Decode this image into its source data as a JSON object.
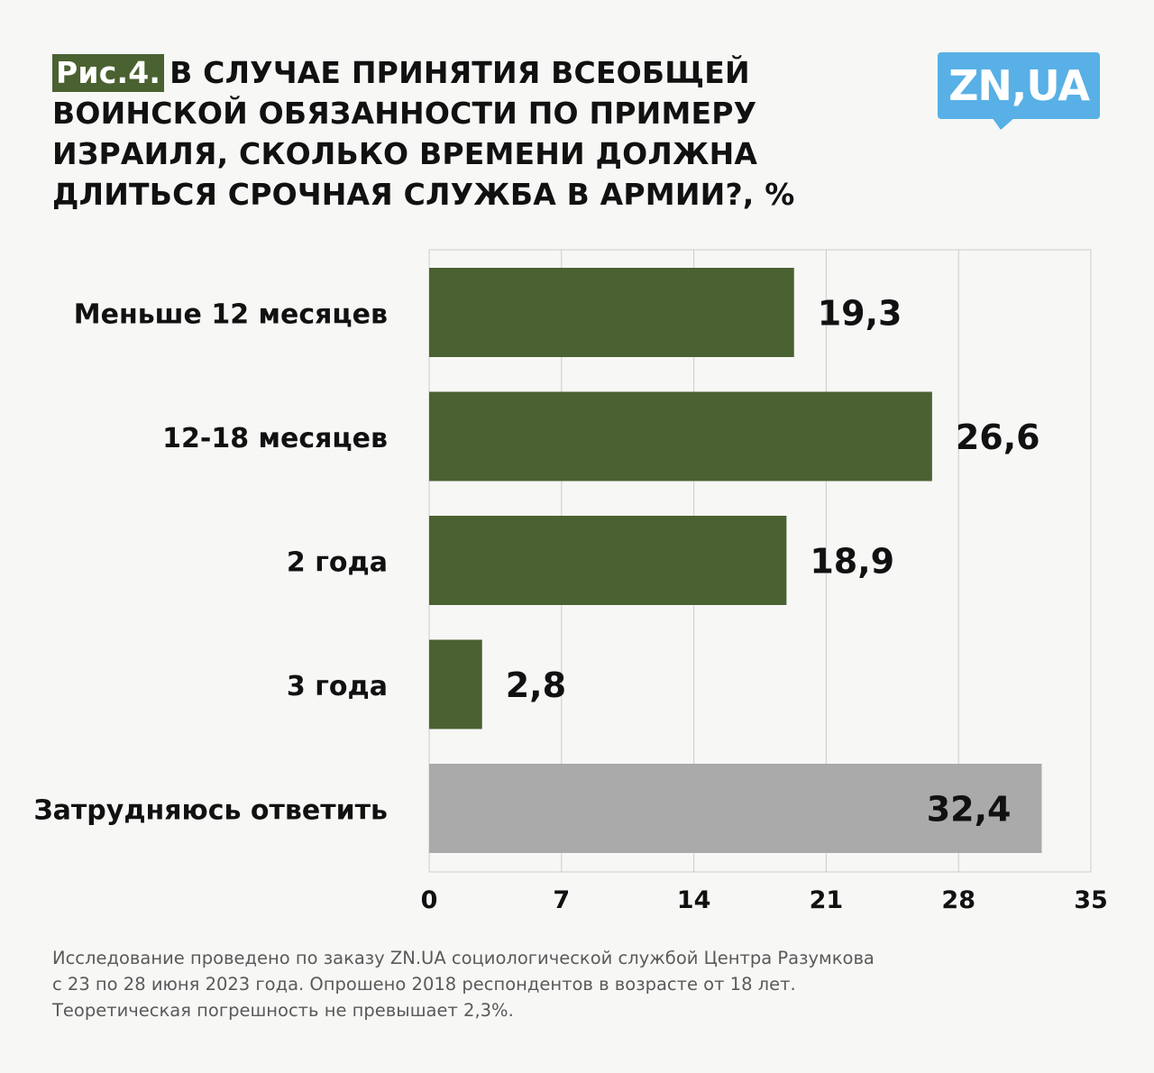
{
  "header": {
    "figure_label": "Рис.4.",
    "title": "В СЛУЧАЕ ПРИНЯТИЯ ВСЕОБЩЕЙ ВОИНСКОЙ ОБЯЗАННОСТИ ПО ПРИМЕРУ ИЗРАИЛЯ, СКОЛЬКО ВРЕМЕНИ ДОЛЖНА ДЛИТЬСЯ СРОЧНАЯ СЛУЖБА В АРМИИ?, %"
  },
  "logo": {
    "text": "ZN,UA",
    "color": "#58b0e6"
  },
  "colors": {
    "bar": "#4a6131",
    "bar_other": "#aaaaaa",
    "grid": "#cccccc",
    "label_bg": "#4a6131"
  },
  "chart_data": {
    "type": "bar",
    "orientation": "horizontal",
    "categories": [
      "Меньше 12 месяцев",
      "12-18 месяцев",
      "2 года",
      "3 года",
      "Затрудняюсь ответить"
    ],
    "values": [
      19.3,
      26.6,
      18.9,
      2.8,
      32.4
    ],
    "value_labels": [
      "19,3",
      "26,6",
      "18,9",
      "2,8",
      "32,4"
    ],
    "xlim": [
      0,
      35
    ],
    "xticks": [
      0,
      7,
      14,
      21,
      28,
      35
    ],
    "grid": true,
    "legend": "none"
  },
  "footnote": {
    "lines": [
      "Исследование проведено по заказу ZN.UA социологической службой Центра Разумкова",
      "с 23 по 28 июня 2023 года. Опрошено 2018 респондентов в возрасте от 18 лет.",
      "Теоретическая погрешность не превышает 2,3%."
    ]
  }
}
